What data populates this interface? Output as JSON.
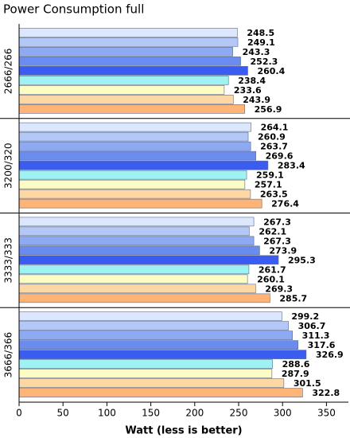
{
  "chart_data": {
    "type": "hbar",
    "title": "Power Consumption full",
    "x_label": "Watt (less is better)",
    "categories": [
      "2666/266",
      "3200/320",
      "3333/333",
      "3666/366"
    ],
    "series": [
      {
        "color": "#dce6fc",
        "values": [
          248.5,
          264.1,
          267.3,
          299.2
        ]
      },
      {
        "color": "#b4c8f8",
        "values": [
          249.1,
          260.9,
          262.1,
          306.7
        ]
      },
      {
        "color": "#8eaaf2",
        "values": [
          243.3,
          263.7,
          267.3,
          311.3
        ]
      },
      {
        "color": "#6a8cee",
        "values": [
          252.3,
          269.6,
          273.9,
          317.6
        ]
      },
      {
        "color": "#3b5cf0",
        "values": [
          260.4,
          283.4,
          295.3,
          326.9
        ]
      },
      {
        "color": "#9ef2f2",
        "values": [
          238.4,
          259.1,
          261.7,
          288.6
        ]
      },
      {
        "color": "#fdfcc4",
        "values": [
          233.6,
          257.1,
          260.1,
          287.9
        ]
      },
      {
        "color": "#fdd8a4",
        "values": [
          243.9,
          263.5,
          269.3,
          301.5
        ]
      },
      {
        "color": "#fdb476",
        "values": [
          256.9,
          276.4,
          285.7,
          322.8
        ]
      }
    ],
    "xlim": [
      0,
      375
    ],
    "xticks": [
      0,
      50,
      100,
      150,
      200,
      250,
      300,
      350
    ]
  }
}
